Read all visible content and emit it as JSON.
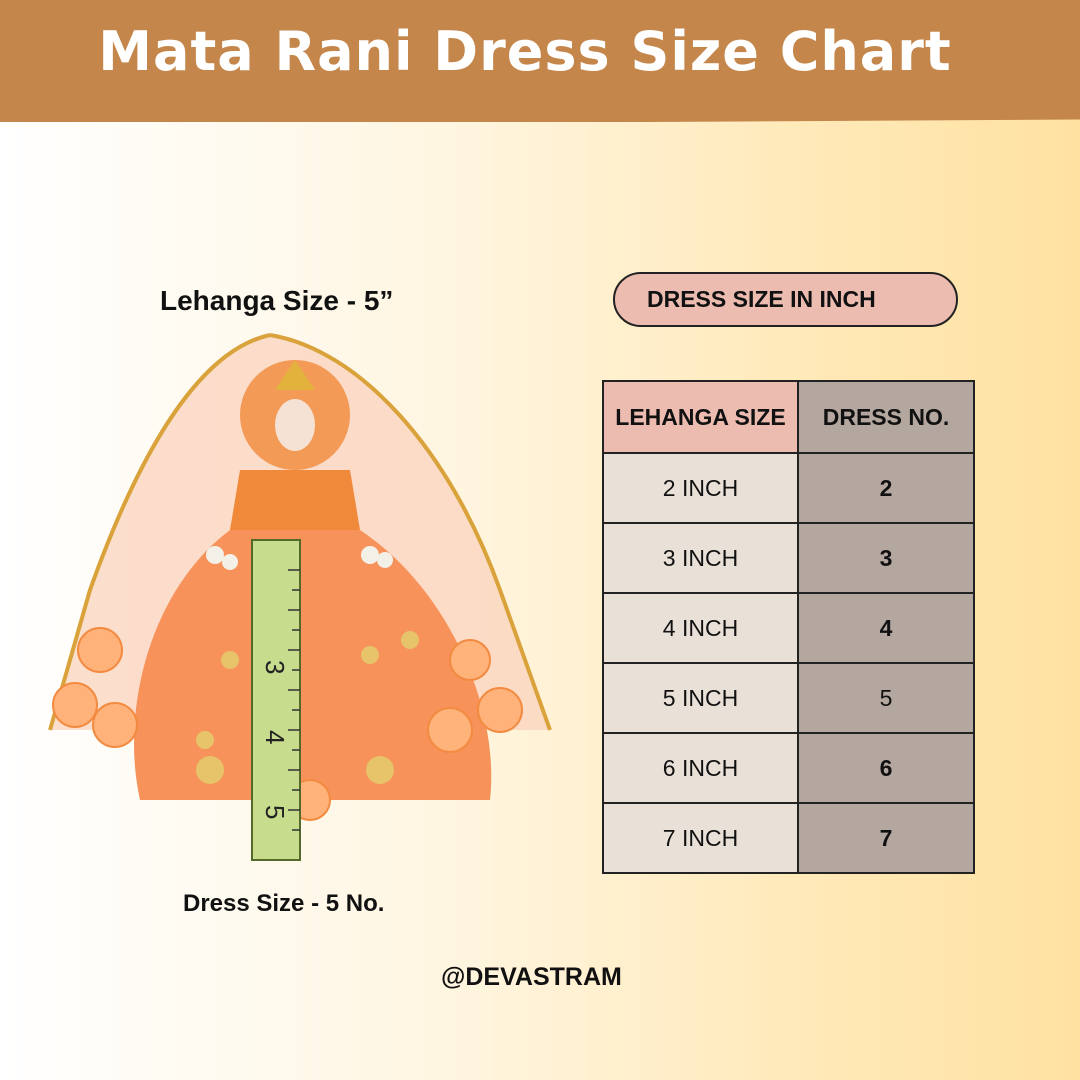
{
  "header": {
    "title": "Mata Rani Dress Size Chart"
  },
  "product": {
    "caption_top": "Lehanga Size - 5”",
    "caption_bottom": "Dress Size - 5 No.",
    "ruler_marks": [
      "3",
      "4",
      "5"
    ]
  },
  "chart": {
    "heading": "DRESS SIZE IN INCH",
    "columns": [
      "LEHANGA SIZE",
      "DRESS NO."
    ],
    "rows": [
      {
        "size": "2 INCH",
        "no": "2"
      },
      {
        "size": "3 INCH",
        "no": "3"
      },
      {
        "size": "4 INCH",
        "no": "4"
      },
      {
        "size": "5 INCH",
        "no": "5"
      },
      {
        "size": "6 INCH",
        "no": "6"
      },
      {
        "size": "7 INCH",
        "no": "7"
      }
    ]
  },
  "footer": {
    "handle": "@DEVASTRAM"
  },
  "colors": {
    "banner": "#c4864a",
    "pill": "#ecbcb0",
    "col1": "#e9e1d8",
    "col2": "#b4a79f",
    "dress": "#f7935a"
  }
}
